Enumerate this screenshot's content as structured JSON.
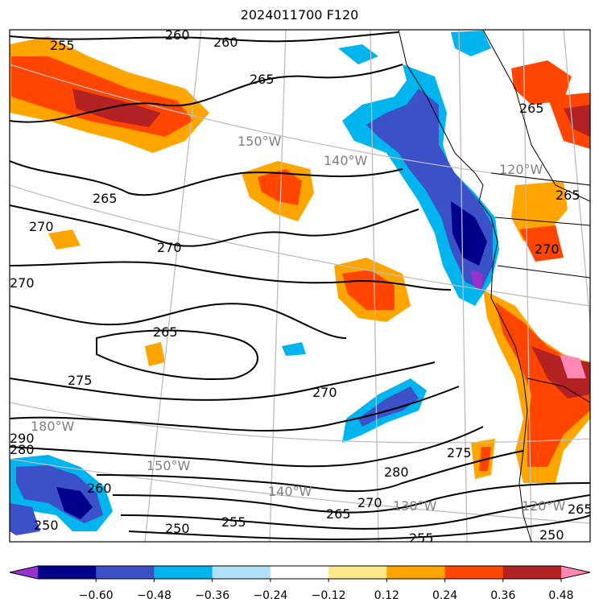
{
  "title": "2024011700 F120",
  "contour_labels": [
    "255",
    "260",
    "260",
    "265",
    "265",
    "265",
    "270",
    "270",
    "270",
    "275",
    "265",
    "270",
    "255",
    "250",
    "250",
    "250",
    "255",
    "260",
    "265",
    "270",
    "280",
    "290",
    "280",
    "265",
    "275",
    "270",
    "265"
  ],
  "gridline_labels": [
    "150°W",
    "140°W",
    "120°W",
    "180°W",
    "150°W",
    "140°W",
    "130°W",
    "120°W"
  ],
  "colorbar": {
    "colors": [
      "#9932cc",
      "#00008b",
      "#3c50c8",
      "#00b4ee",
      "#b0e0f8",
      "#ffffff",
      "#ffe88c",
      "#ffa500",
      "#ff4500",
      "#b22222",
      "#ff88b4"
    ],
    "tick_labels": [
      "−0.60",
      "−0.48",
      "−0.36",
      "−0.24",
      "−0.12",
      "0.12",
      "0.24",
      "0.36",
      "0.48",
      "0.60"
    ]
  }
}
